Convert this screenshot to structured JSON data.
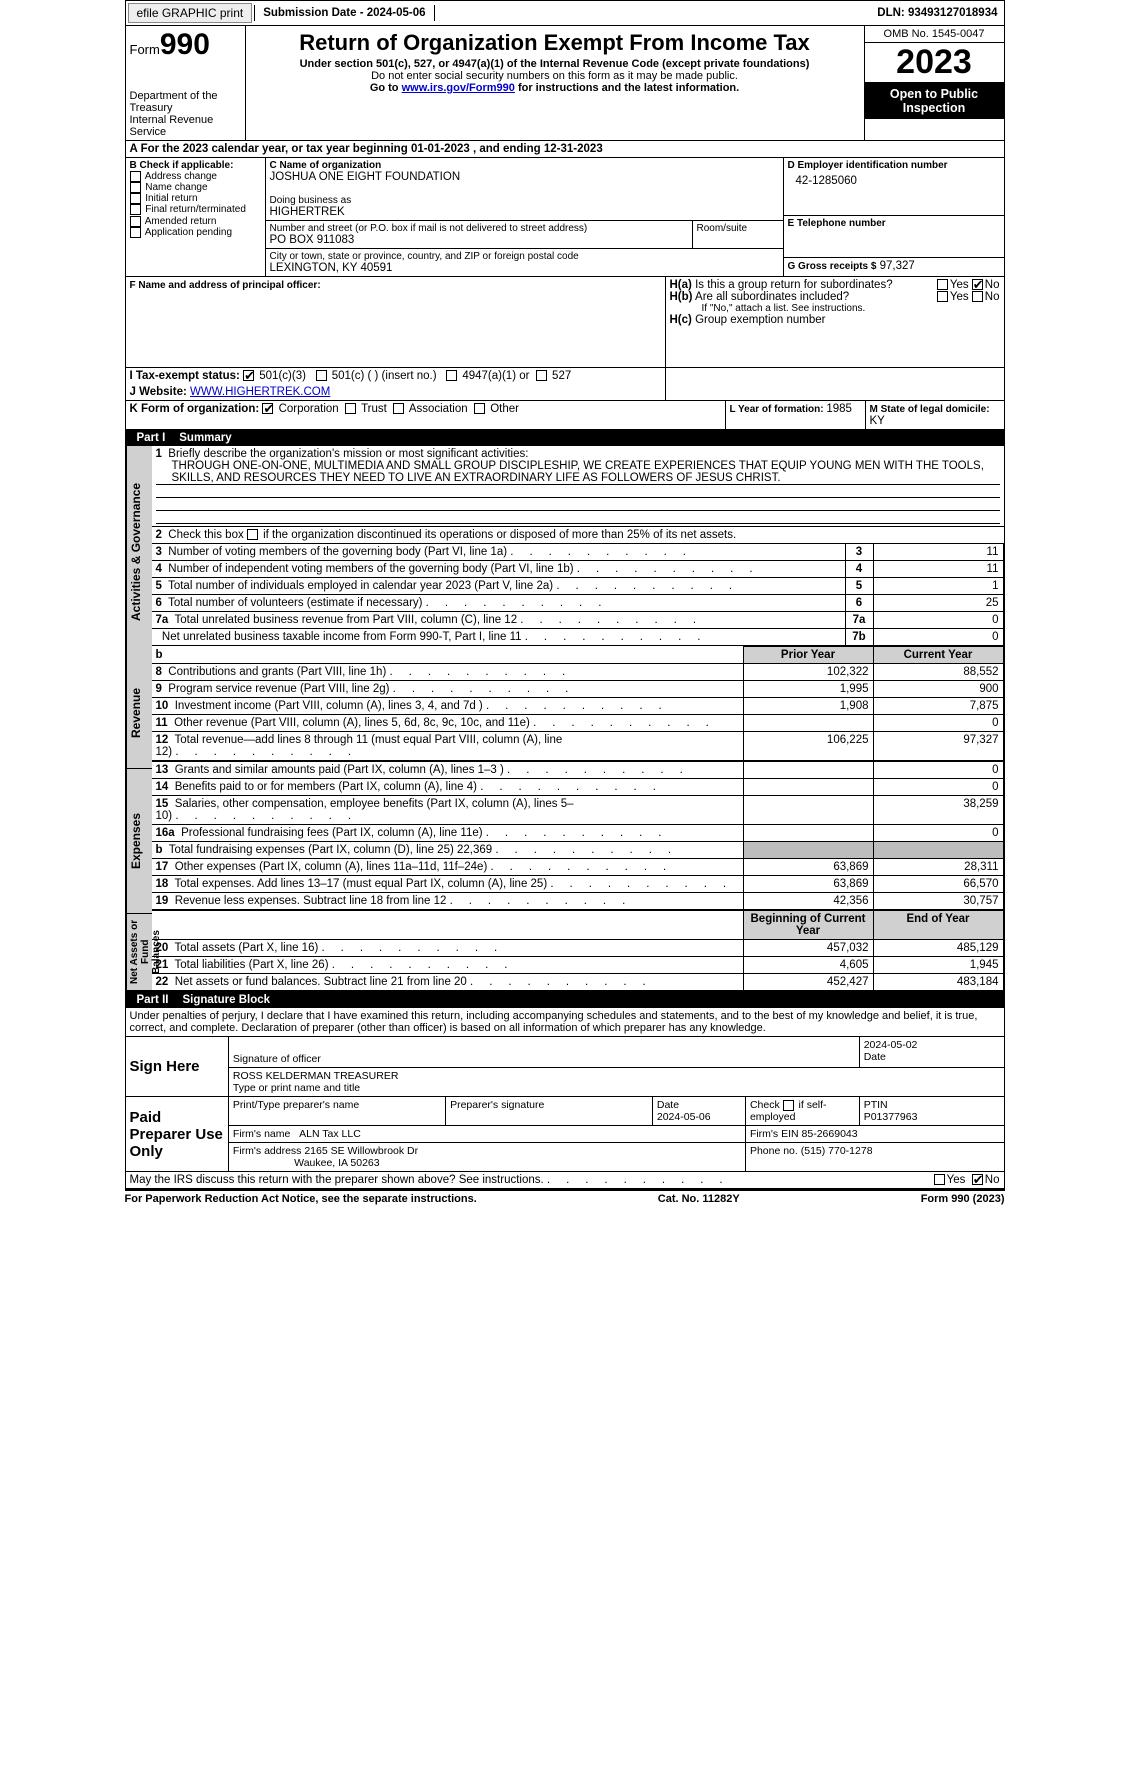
{
  "topbar": {
    "efile_label": "efile GRAPHIC print",
    "submission_label": "Submission Date - 2024-05-06",
    "dln_label": "DLN: 93493127018934"
  },
  "header": {
    "form_word": "Form",
    "form_num": "990",
    "dept": "Department of the Treasury",
    "irs": "Internal Revenue Service",
    "title": "Return of Organization Exempt From Income Tax",
    "subtitle": "Under section 501(c), 527, or 4947(a)(1) of the Internal Revenue Code (except private foundations)",
    "note1": "Do not enter social security numbers on this form as it may be made public.",
    "note2_pre": "Go to ",
    "note2_link": "www.irs.gov/Form990",
    "note2_post": " for instructions and the latest information.",
    "omb": "OMB No. 1545-0047",
    "year": "2023",
    "otp": "Open to Public Inspection"
  },
  "period": {
    "text_a": "A For the 2023 calendar year, or tax year beginning ",
    "begin": "01-01-2023",
    "text_b": "   , and ending ",
    "end": "12-31-2023"
  },
  "boxB": {
    "label": "B Check if applicable:",
    "items": [
      "Address change",
      "Name change",
      "Initial return",
      "Final return/terminated",
      "Amended return",
      "Application pending"
    ]
  },
  "boxC": {
    "name_label": "C Name of organization",
    "name": "JOSHUA ONE EIGHT FOUNDATION",
    "dba_label": "Doing business as",
    "dba": "HIGHERTREK",
    "street_label": "Number and street (or P.O. box if mail is not delivered to street address)",
    "street": "PO BOX 911083",
    "room_label": "Room/suite",
    "city_label": "City or town, state or province, country, and ZIP or foreign postal code",
    "city": "LEXINGTON, KY  40591"
  },
  "boxD": {
    "label": "D Employer identification number",
    "value": "42-1285060"
  },
  "boxE": {
    "label": "E Telephone number",
    "value": ""
  },
  "boxG": {
    "label": "G Gross receipts $",
    "value": "97,327"
  },
  "boxF": {
    "label": "F  Name and address of principal officer:"
  },
  "boxH": {
    "a_label": "H(a)  Is this a group return for subordinates?",
    "a_yes": "Yes",
    "a_no": "No",
    "a_checked": "no",
    "b_label": "H(b)  Are all subordinates included?",
    "b_yes": "Yes",
    "b_no": "No",
    "b_note": "If \"No,\" attach a list. See instructions.",
    "c_label": "H(c)  Group exemption number "
  },
  "boxI": {
    "label": "I  Tax-exempt status:",
    "opt1": "501(c)(3)",
    "opt2": "501(c) (  ) (insert no.)",
    "opt3": "4947(a)(1) or",
    "opt4": "527"
  },
  "boxJ": {
    "label": "J  Website: ",
    "value": "WWW.HIGHERTREK.COM"
  },
  "boxK": {
    "label": "K Form of organization:",
    "opts": [
      "Corporation",
      "Trust",
      "Association",
      "Other"
    ]
  },
  "boxL": {
    "label": "L Year of formation: ",
    "value": "1985"
  },
  "boxM": {
    "label": "M State of legal domicile: ",
    "value": "KY"
  },
  "part1": {
    "hdr_num": "Part I",
    "hdr_title": "Summary",
    "side_ag": "Activities & Governance",
    "side_rev": "Revenue",
    "side_exp": "Expenses",
    "side_na": "Net Assets or Fund Balances",
    "l1_label": "Briefly describe the organization's mission or most significant activities:",
    "l1_text": "THROUGH ONE-ON-ONE, MULTIMEDIA AND SMALL GROUP DISCIPLESHIP, WE CREATE EXPERIENCES THAT EQUIP YOUNG MEN WITH THE TOOLS, SKILLS, AND RESOURCES THEY NEED TO LIVE AN EXTRAORDINARY LIFE AS FOLLOWERS OF JESUS CHRIST.",
    "l2": "Check this box      if the organization discontinued its operations or disposed of more than 25% of its net assets.",
    "rows_ag": [
      {
        "n": "3",
        "t": "Number of voting members of the governing body (Part VI, line 1a)",
        "k": "3",
        "v": "11"
      },
      {
        "n": "4",
        "t": "Number of independent voting members of the governing body (Part VI, line 1b)",
        "k": "4",
        "v": "11"
      },
      {
        "n": "5",
        "t": "Total number of individuals employed in calendar year 2023 (Part V, line 2a)",
        "k": "5",
        "v": "1"
      },
      {
        "n": "6",
        "t": "Total number of volunteers (estimate if necessary)",
        "k": "6",
        "v": "25"
      },
      {
        "n": "7a",
        "t": "Total unrelated business revenue from Part VIII, column (C), line 12",
        "k": "7a",
        "v": "0"
      },
      {
        "n": "",
        "t": "Net unrelated business taxable income from Form 990-T, Part I, line 11",
        "k": "7b",
        "v": "0"
      }
    ],
    "col_prior": "Prior Year",
    "col_curr": "Current Year",
    "rows_rev": [
      {
        "n": "8",
        "t": "Contributions and grants (Part VIII, line 1h)",
        "p": "102,322",
        "c": "88,552"
      },
      {
        "n": "9",
        "t": "Program service revenue (Part VIII, line 2g)",
        "p": "1,995",
        "c": "900"
      },
      {
        "n": "10",
        "t": "Investment income (Part VIII, column (A), lines 3, 4, and 7d )",
        "p": "1,908",
        "c": "7,875"
      },
      {
        "n": "11",
        "t": "Other revenue (Part VIII, column (A), lines 5, 6d, 8c, 9c, 10c, and 11e)",
        "p": "",
        "c": "0"
      },
      {
        "n": "12",
        "t": "Total revenue—add lines 8 through 11 (must equal Part VIII, column (A), line 12)",
        "p": "106,225",
        "c": "97,327"
      }
    ],
    "rows_exp": [
      {
        "n": "13",
        "t": "Grants and similar amounts paid (Part IX, column (A), lines 1–3 )",
        "p": "",
        "c": "0"
      },
      {
        "n": "14",
        "t": "Benefits paid to or for members (Part IX, column (A), line 4)",
        "p": "",
        "c": "0"
      },
      {
        "n": "15",
        "t": "Salaries, other compensation, employee benefits (Part IX, column (A), lines 5–10)",
        "p": "",
        "c": "38,259"
      },
      {
        "n": "16a",
        "t": "Professional fundraising fees (Part IX, column (A), line 11e)",
        "p": "",
        "c": "0"
      },
      {
        "n": "b",
        "t": "Total fundraising expenses (Part IX, column (D), line 25) 22,369",
        "p": "GRAY",
        "c": "GRAY"
      },
      {
        "n": "17",
        "t": "Other expenses (Part IX, column (A), lines 11a–11d, 11f–24e)",
        "p": "63,869",
        "c": "28,311"
      },
      {
        "n": "18",
        "t": "Total expenses. Add lines 13–17 (must equal Part IX, column (A), line 25)",
        "p": "63,869",
        "c": "66,570"
      },
      {
        "n": "19",
        "t": "Revenue less expenses. Subtract line 18 from line 12",
        "p": "42,356",
        "c": "30,757"
      }
    ],
    "col_beg": "Beginning of Current Year",
    "col_end": "End of Year",
    "rows_na": [
      {
        "n": "20",
        "t": "Total assets (Part X, line 16)",
        "p": "457,032",
        "c": "485,129"
      },
      {
        "n": "21",
        "t": "Total liabilities (Part X, line 26)",
        "p": "4,605",
        "c": "1,945"
      },
      {
        "n": "22",
        "t": "Net assets or fund balances. Subtract line 21 from line 20",
        "p": "452,427",
        "c": "483,184"
      }
    ]
  },
  "part2": {
    "hdr_num": "Part II",
    "hdr_title": "Signature Block",
    "decl": "Under penalties of perjury, I declare that I have examined this return, including accompanying schedules and statements, and to the best of my knowledge and belief, it is true, correct, and complete. Declaration of preparer (other than officer) is based on all information of which preparer has any knowledge.",
    "sign_here": "Sign Here",
    "sig_officer_label": "Signature of officer",
    "sig_date": "2024-05-02",
    "sig_date_label": "Date",
    "officer_name": "ROSS KELDERMAN  TREASURER",
    "officer_name_label": "Type or print name and title",
    "paid": "Paid Preparer Use Only",
    "prep_name_label": "Print/Type preparer's name",
    "prep_sig_label": "Preparer's signature",
    "prep_date_label": "Date",
    "prep_date": "2024-05-06",
    "prep_self": "Check       if self-employed",
    "ptin_label": "PTIN",
    "ptin": "P01377963",
    "firm_name_label": "Firm's name    ",
    "firm_name": "ALN Tax LLC",
    "firm_ein_label": "Firm's EIN  ",
    "firm_ein": "85-2669043",
    "firm_addr_label": "Firm's address ",
    "firm_addr1": "2165 SE Willowbrook Dr",
    "firm_addr2": "Waukee, IA  50263",
    "firm_phone_label": "Phone no. ",
    "firm_phone": "(515) 770-1278",
    "discuss": "May the IRS discuss this return with the preparer shown above? See instructions.",
    "discuss_yes": "Yes",
    "discuss_no": "No"
  },
  "footer": {
    "left": "For Paperwork Reduction Act Notice, see the separate instructions.",
    "mid": "Cat. No. 11282Y",
    "right": "Form 990 (2023)"
  },
  "colors": {
    "hdr_bg": "#000000",
    "gray": "#bdbdbd",
    "ltgray": "#d0d0d0",
    "link": "#0000cd"
  }
}
